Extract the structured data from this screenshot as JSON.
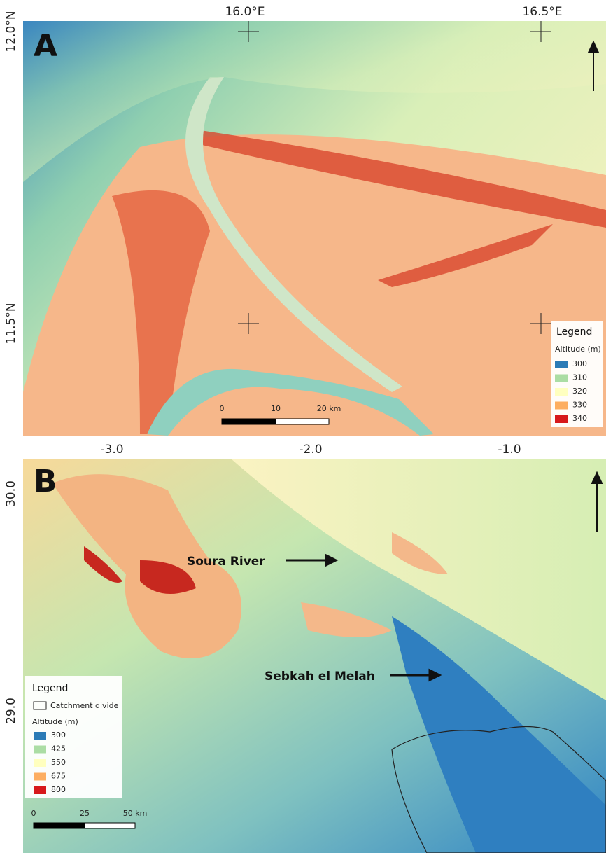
{
  "panel_a": {
    "label": "A",
    "lon_labels": [
      "16.0°E",
      "16.5°E"
    ],
    "lat_labels": [
      "12.0°N",
      "11.5°N"
    ],
    "legend": {
      "title": "Legend",
      "subtitle": "Altitude (m)",
      "items": [
        {
          "label": "300",
          "color": "#2c7bb6"
        },
        {
          "label": "310",
          "color": "#abdda4"
        },
        {
          "label": "320",
          "color": "#ffffbf"
        },
        {
          "label": "330",
          "color": "#fdae61"
        },
        {
          "label": "340",
          "color": "#d7191c"
        }
      ]
    },
    "scale": [
      "0",
      "10",
      "20 km"
    ]
  },
  "panel_b": {
    "label": "B",
    "lon_labels": [
      "-3.0",
      "-2.0",
      "-1.0"
    ],
    "lat_labels": [
      "30.0",
      "29.0"
    ],
    "annotations": [
      "Soura River",
      "Sebkah el Melah"
    ],
    "legend": {
      "title": "Legend",
      "divide": "Catchment divide",
      "subtitle": "Altitude (m)",
      "items": [
        {
          "label": "300",
          "color": "#2c7bb6"
        },
        {
          "label": "425",
          "color": "#abdda4"
        },
        {
          "label": "550",
          "color": "#ffffbf"
        },
        {
          "label": "675",
          "color": "#fdae61"
        },
        {
          "label": "800",
          "color": "#d7191c"
        }
      ]
    },
    "scale": [
      "0",
      "25",
      "50 km"
    ]
  }
}
